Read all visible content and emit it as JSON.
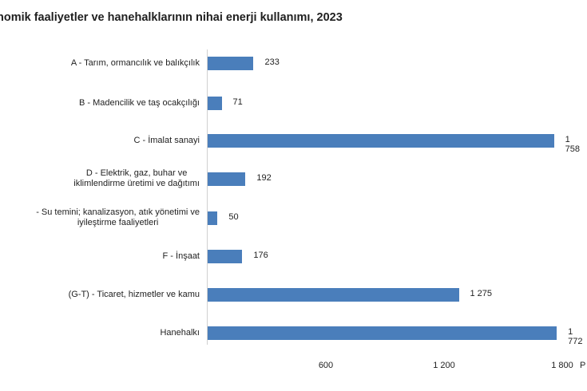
{
  "chart_data": {
    "type": "bar",
    "orientation": "horizontal",
    "title": "nomik faaliyetler ve hanehalklarının nihai enerji kullanımı, 2023",
    "categories": [
      "A - Tarım, ormancılık ve balıkçılık",
      "B - Madencilik ve taş ocakçılığı",
      "C - İmalat sanayi",
      "D - Elektrik, gaz, buhar ve\niklimlendirme üretimi ve dağıtımı",
      "- Su temini; kanalizasyon, atık yönetimi ve\niyileştirme faaliyetleri",
      "F - İnşaat",
      "(G-T) - Ticaret, hizmetler ve kamu",
      "Hanehalkı"
    ],
    "values": [
      233,
      71,
      1758,
      192,
      50,
      176,
      1275,
      1772
    ],
    "value_labels": [
      "233",
      "71",
      "1 758",
      "192",
      "50",
      "176",
      "1 275",
      "1 772"
    ],
    "xlim": [
      0,
      1800
    ],
    "x_ticks": [
      600,
      1200,
      1800
    ],
    "x_tick_labels": [
      "600",
      "1 200",
      "1 800"
    ],
    "unit_label": "P",
    "grid": false,
    "legend": "none",
    "bar_color": "#4a7ebb"
  }
}
